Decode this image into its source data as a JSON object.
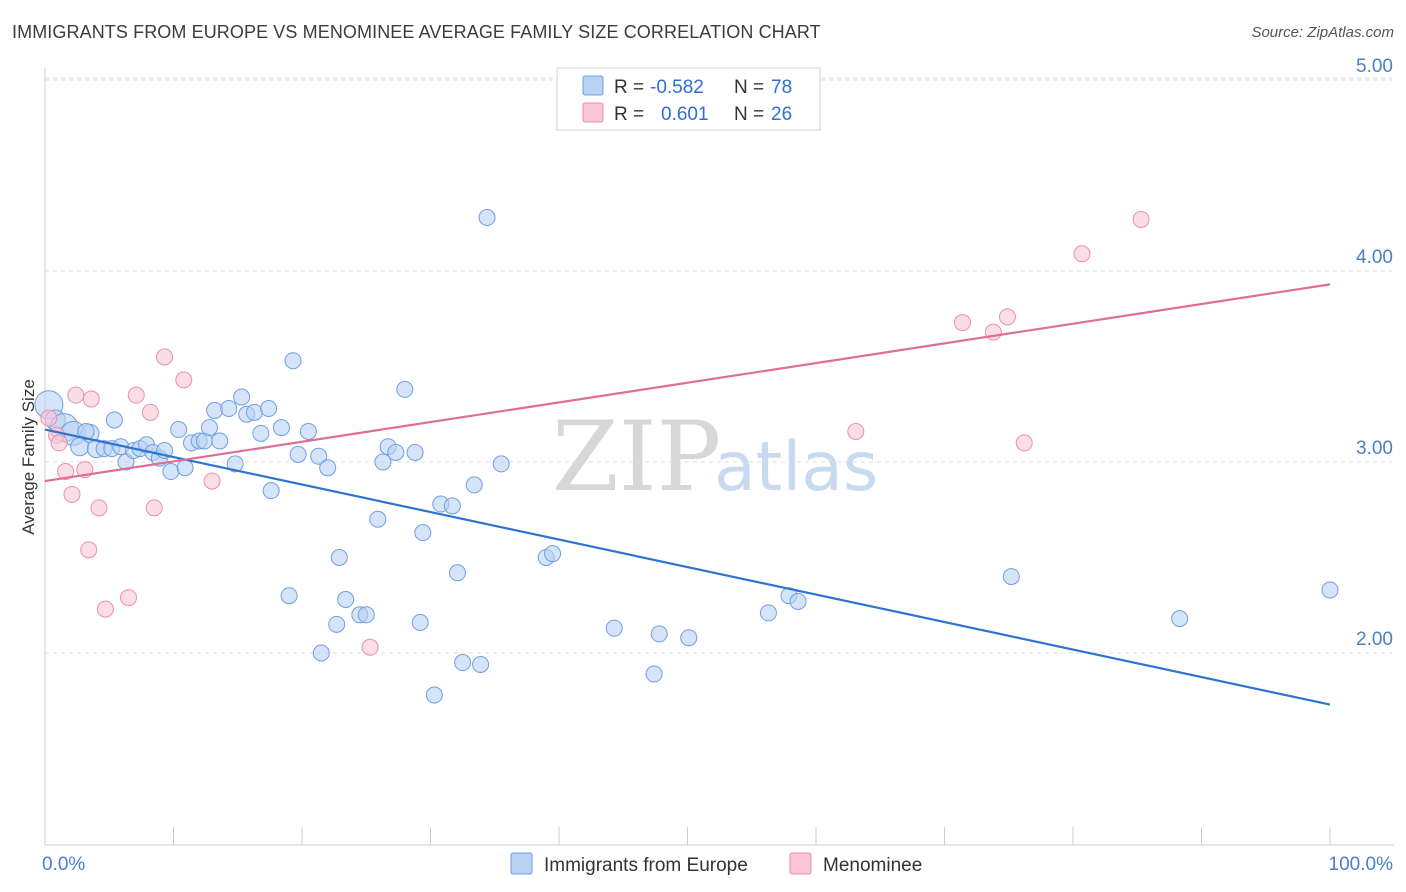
{
  "title": "IMMIGRANTS FROM EUROPE VS MENOMINEE AVERAGE FAMILY SIZE CORRELATION CHART",
  "source": "Source: ZipAtlas.com",
  "watermark": {
    "zip": "ZIP",
    "atlas": "atlas"
  },
  "colors": {
    "blue_fill": "#b9d2f3",
    "blue_stroke": "#6f9fe0",
    "blue_line": "#2f74d0",
    "pink_fill": "#f8c6d6",
    "pink_stroke": "#e890ad",
    "pink_line": "#e06d94",
    "grid": "#dddddd",
    "tick_text": "#4a7fc8"
  },
  "legend": {
    "rows": [
      {
        "r_label": "R =",
        "r_value": "-0.582",
        "n_label": "N =",
        "n_value": "78",
        "series": "blue"
      },
      {
        "r_label": "R =",
        "r_value": "0.601",
        "n_label": "N =",
        "n_value": "26",
        "series": "pink"
      }
    ]
  },
  "chart_data": {
    "type": "scatter",
    "title": "IMMIGRANTS FROM EUROPE VS MENOMINEE AVERAGE FAMILY SIZE CORRELATION CHART",
    "xlabel": "",
    "ylabel": "Average Family Size",
    "xlim": [
      0,
      100
    ],
    "ylim": [
      1.0,
      5.1
    ],
    "x_tick_labels": [
      "0.0%",
      "100.0%"
    ],
    "y_ticks": [
      2.0,
      3.0,
      4.0,
      5.0
    ],
    "y_tick_labels": [
      "2.00",
      "3.00",
      "4.00",
      "5.00"
    ],
    "grid": "horizontal dashed",
    "legend_position": "bottom-center",
    "series": [
      {
        "name": "Immigrants from Europe",
        "color": "blue",
        "trend": {
          "x0": 0,
          "y0": 3.17,
          "x1": 100,
          "y1": 1.73
        },
        "points": [
          [
            0.3,
            3.3,
            14
          ],
          [
            0.8,
            3.22,
            10
          ],
          [
            1.5,
            3.18,
            14
          ],
          [
            2.2,
            3.15,
            12
          ],
          [
            2.7,
            3.08,
            9
          ],
          [
            3.5,
            3.15,
            9
          ],
          [
            4.0,
            3.07,
            9
          ],
          [
            4.6,
            3.07,
            8
          ],
          [
            5.2,
            3.07,
            8
          ],
          [
            5.4,
            3.22,
            8
          ],
          [
            5.9,
            3.08,
            8
          ],
          [
            6.3,
            3.0,
            8
          ],
          [
            6.9,
            3.06,
            8
          ],
          [
            7.4,
            3.07,
            8
          ],
          [
            7.9,
            3.09,
            8
          ],
          [
            8.4,
            3.05,
            8
          ],
          [
            8.9,
            3.02,
            8
          ],
          [
            9.3,
            3.06,
            8
          ],
          [
            9.8,
            2.95,
            8
          ],
          [
            10.4,
            3.17,
            8
          ],
          [
            10.9,
            2.97,
            8
          ],
          [
            11.4,
            3.1,
            8
          ],
          [
            12.0,
            3.11,
            8
          ],
          [
            12.4,
            3.11,
            8
          ],
          [
            12.8,
            3.18,
            8
          ],
          [
            13.2,
            3.27,
            8
          ],
          [
            13.6,
            3.11,
            8
          ],
          [
            14.3,
            3.28,
            8
          ],
          [
            14.8,
            2.99,
            8
          ],
          [
            15.3,
            3.34,
            8
          ],
          [
            15.7,
            3.25,
            8
          ],
          [
            16.3,
            3.26,
            8
          ],
          [
            16.8,
            3.15,
            8
          ],
          [
            17.4,
            3.28,
            8
          ],
          [
            17.6,
            2.85,
            8
          ],
          [
            18.4,
            3.18,
            8
          ],
          [
            19.3,
            3.53,
            8
          ],
          [
            19.0,
            2.3,
            8
          ],
          [
            19.7,
            3.04,
            8
          ],
          [
            20.5,
            3.16,
            8
          ],
          [
            21.3,
            3.03,
            8
          ],
          [
            21.5,
            2.0,
            8
          ],
          [
            22.0,
            2.97,
            8
          ],
          [
            22.7,
            2.15,
            8
          ],
          [
            22.9,
            2.5,
            8
          ],
          [
            23.4,
            2.28,
            8
          ],
          [
            24.5,
            2.2,
            8
          ],
          [
            25.0,
            2.2,
            8
          ],
          [
            25.9,
            2.7,
            8
          ],
          [
            26.3,
            3.0,
            8
          ],
          [
            26.7,
            3.08,
            8
          ],
          [
            27.3,
            3.05,
            8
          ],
          [
            28.0,
            3.38,
            8
          ],
          [
            28.8,
            3.05,
            8
          ],
          [
            29.2,
            2.16,
            8
          ],
          [
            29.4,
            2.63,
            8
          ],
          [
            30.3,
            1.78,
            8
          ],
          [
            30.8,
            2.78,
            8
          ],
          [
            31.7,
            2.77,
            8
          ],
          [
            32.1,
            2.42,
            8
          ],
          [
            32.5,
            1.95,
            8
          ],
          [
            33.4,
            2.88,
            8
          ],
          [
            33.9,
            1.94,
            8
          ],
          [
            34.4,
            4.28,
            8
          ],
          [
            35.5,
            2.99,
            8
          ],
          [
            39.0,
            2.5,
            8
          ],
          [
            39.5,
            2.52,
            8
          ],
          [
            44.3,
            2.13,
            8
          ],
          [
            47.4,
            1.89,
            8
          ],
          [
            47.8,
            2.1,
            8
          ],
          [
            50.1,
            2.08,
            8
          ],
          [
            56.3,
            2.21,
            8
          ],
          [
            57.9,
            2.3,
            8
          ],
          [
            58.6,
            2.27,
            8
          ],
          [
            75.2,
            2.4,
            8
          ],
          [
            88.3,
            2.18,
            8
          ],
          [
            100.0,
            2.33,
            8
          ],
          [
            3.2,
            3.16,
            8
          ]
        ]
      },
      {
        "name": "Menominee",
        "color": "pink",
        "trend": {
          "x0": 0,
          "y0": 2.9,
          "x1": 100,
          "y1": 3.93
        },
        "points": [
          [
            0.3,
            3.23,
            8
          ],
          [
            0.9,
            3.14,
            8
          ],
          [
            1.1,
            3.1,
            8
          ],
          [
            1.6,
            2.95,
            8
          ],
          [
            2.1,
            2.83,
            8
          ],
          [
            2.4,
            3.35,
            8
          ],
          [
            3.1,
            2.96,
            8
          ],
          [
            3.4,
            2.54,
            8
          ],
          [
            3.6,
            3.33,
            8
          ],
          [
            4.2,
            2.76,
            8
          ],
          [
            4.7,
            2.23,
            8
          ],
          [
            6.5,
            2.29,
            8
          ],
          [
            7.1,
            3.35,
            8
          ],
          [
            8.2,
            3.26,
            8
          ],
          [
            8.5,
            2.76,
            8
          ],
          [
            9.3,
            3.55,
            8
          ],
          [
            10.8,
            3.43,
            8
          ],
          [
            13.0,
            2.9,
            8
          ],
          [
            25.3,
            2.03,
            8
          ],
          [
            63.1,
            3.16,
            8
          ],
          [
            71.4,
            3.73,
            8
          ],
          [
            73.8,
            3.68,
            8
          ],
          [
            74.9,
            3.76,
            8
          ],
          [
            76.2,
            3.1,
            8
          ],
          [
            80.7,
            4.09,
            8
          ],
          [
            85.3,
            4.27,
            8
          ]
        ]
      }
    ]
  }
}
